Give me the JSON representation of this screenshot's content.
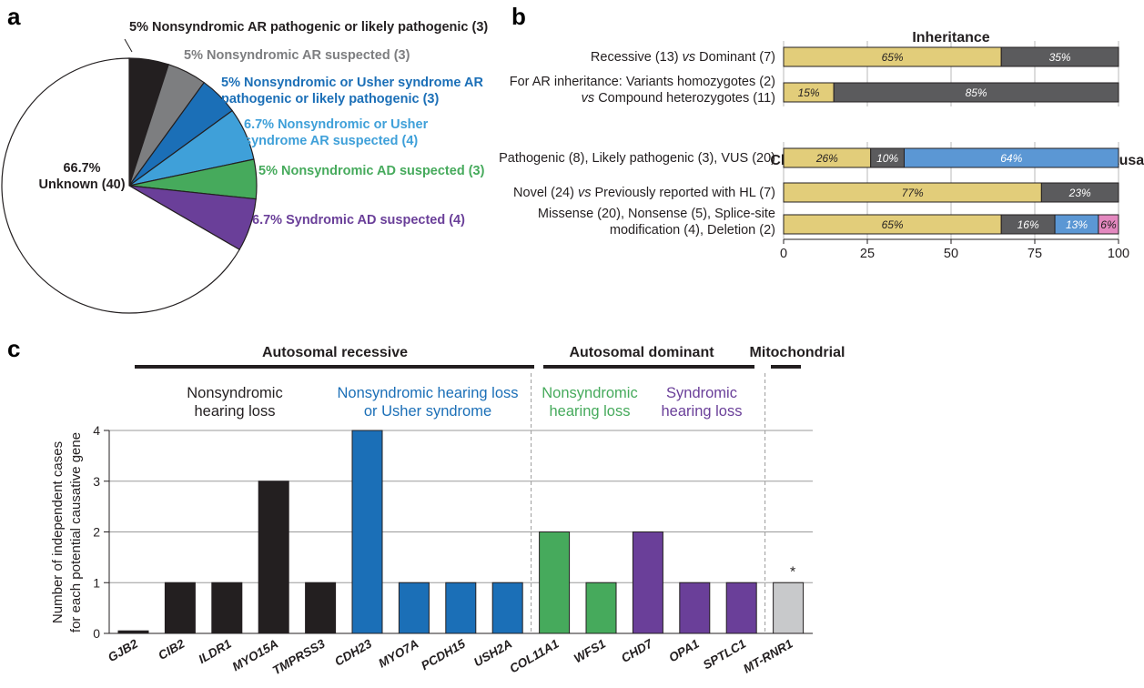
{
  "panel_labels": {
    "a": "a",
    "b": "b",
    "c": "c"
  },
  "colors": {
    "black": "#231f20",
    "gray": "#7d7e80",
    "blue": "#1b6fb7",
    "light_blue": "#3fa0d9",
    "green": "#46aa5c",
    "purple": "#6a3f99",
    "white": "#ffffff",
    "yellow": "#e2cd7a",
    "dark_gray": "#5b5b5d",
    "mid_blue": "#5b97d4",
    "pink": "#e388bf",
    "light_gray": "#c8c9cb"
  },
  "chart_data": [
    {
      "type": "pie",
      "panel": "a",
      "slices": [
        {
          "label": "5% Nonsyndromic AR pathogenic or likely pathogenic (3)",
          "value": 5,
          "color": "#231f20"
        },
        {
          "label": "5% Nonsyndromic AR suspected (3)",
          "value": 5,
          "color": "#7d7e80"
        },
        {
          "label": "5% Nonsyndromic or Usher syndrome AR pathogenic or likely pathogenic (3)",
          "value": 5,
          "color": "#1b6fb7"
        },
        {
          "label": "6.7% Nonsyndromic or Usher syndrome AR suspected (4)",
          "value": 6.7,
          "color": "#3fa0d9"
        },
        {
          "label": "5% Nonsyndromic AD suspected (3)",
          "value": 5,
          "color": "#46aa5c"
        },
        {
          "label": "6.7% Syndromic AD suspected (4)",
          "value": 6.7,
          "color": "#6a3f99"
        },
        {
          "label": "66.7% Unknown (40)",
          "value": 66.7,
          "color": "#ffffff"
        }
      ],
      "label_lines": {
        "s0": [
          "5% Nonsyndromic AR pathogenic or likely pathogenic (3)"
        ],
        "s1": [
          "5% Nonsyndromic AR suspected (3)"
        ],
        "s2": [
          "5% Nonsyndromic or Usher syndrome AR",
          "pathogenic or likely pathogenic (3)"
        ],
        "s3": [
          "6.7% Nonsyndromic or Usher",
          "syndrome AR suspected (4)"
        ],
        "s4": [
          "5% Nonsyndromic AD suspected (3)"
        ],
        "s5": [
          "6.7% Syndromic AD suspected (4)"
        ],
        "s6": [
          "66.7%",
          "Unknown (40)"
        ]
      }
    },
    {
      "type": "bar",
      "subtype": "stacked-horizontal",
      "panel": "b",
      "titles": [
        "Inheritance",
        "Characteristics of the Variants Suspected to be Causal"
      ],
      "xlim": [
        0,
        100
      ],
      "xticks": [
        0,
        25,
        50,
        75,
        100
      ],
      "grid": true,
      "rows": [
        {
          "label_parts": [
            [
              "Recessive (13) ",
              ""
            ],
            [
              "vs",
              "italic"
            ],
            [
              " Dominant (7)",
              ""
            ]
          ],
          "segments": [
            {
              "value": 65,
              "label": "65%",
              "color": "#e2cd7a"
            },
            {
              "value": 35,
              "label": "35%",
              "color": "#5b5b5d"
            }
          ]
        },
        {
          "label_lines": [
            [
              [
                "For AR inheritance: Variants homozygotes (2)",
                ""
              ]
            ],
            [
              [
                "vs",
                "italic"
              ],
              [
                " Compound heterozygotes (11)",
                ""
              ]
            ]
          ],
          "segments": [
            {
              "value": 15,
              "label": "15%",
              "color": "#e2cd7a"
            },
            {
              "value": 85,
              "label": "85%",
              "color": "#5b5b5d"
            }
          ]
        },
        {
          "label_parts": [
            [
              "Pathogenic (8), Likely pathogenic (3), VUS (20)",
              ""
            ]
          ],
          "segments": [
            {
              "value": 26,
              "label": "26%",
              "color": "#e2cd7a"
            },
            {
              "value": 10,
              "label": "10%",
              "color": "#5b5b5d"
            },
            {
              "value": 64,
              "label": "64%",
              "color": "#5b97d4"
            }
          ]
        },
        {
          "label_parts": [
            [
              "Novel (24) ",
              ""
            ],
            [
              "vs",
              "italic"
            ],
            [
              " Previously reported with HL (7)",
              ""
            ]
          ],
          "segments": [
            {
              "value": 77,
              "label": "77%",
              "color": "#e2cd7a"
            },
            {
              "value": 23,
              "label": "23%",
              "color": "#5b5b5d"
            }
          ]
        },
        {
          "label_lines": [
            [
              [
                "Missense (20), Nonsense (5), Splice-site",
                ""
              ]
            ],
            [
              [
                "modification (4), Deletion (2)",
                ""
              ]
            ]
          ],
          "segments": [
            {
              "value": 65,
              "label": "65%",
              "color": "#e2cd7a"
            },
            {
              "value": 16,
              "label": "16%",
              "color": "#5b5b5d"
            },
            {
              "value": 13,
              "label": "13%",
              "color": "#5b97d4"
            },
            {
              "value": 6,
              "label": "6%",
              "color": "#e388bf"
            }
          ]
        }
      ]
    },
    {
      "type": "bar",
      "panel": "c",
      "ylabel_lines": [
        "Number of independent cases",
        "for each potential causative gene"
      ],
      "ylim": [
        0,
        4
      ],
      "yticks": [
        0,
        1,
        2,
        3,
        4
      ],
      "grid": true,
      "categories": [
        "GJB2",
        "CIB2",
        "ILDR1",
        "MYO15A",
        "TMPRSS3",
        "CDH23",
        "MYO7A",
        "PCDH15",
        "USH2A",
        "COL11A1",
        "WFS1",
        "CHD7",
        "OPA1",
        "SPTLC1",
        "MT-RNR1"
      ],
      "values": [
        0.05,
        1,
        1,
        3,
        1,
        4,
        1,
        1,
        1,
        2,
        1,
        2,
        1,
        1,
        1
      ],
      "colors": [
        "#231f20",
        "#231f20",
        "#231f20",
        "#231f20",
        "#231f20",
        "#1b6fb7",
        "#1b6fb7",
        "#1b6fb7",
        "#1b6fb7",
        "#46aa5c",
        "#46aa5c",
        "#6a3f99",
        "#6a3f99",
        "#6a3f99",
        "#c8c9cb"
      ],
      "annotations": [
        {
          "category": "MT-RNR1",
          "text": "*"
        }
      ],
      "groups": [
        {
          "label": "Autosomal recessive",
          "color": "#231f20"
        },
        {
          "label": "Autosomal dominant",
          "color": "#231f20"
        },
        {
          "label": "Mitochondrial",
          "color": "#231f20"
        }
      ],
      "subgroups": [
        {
          "lines": [
            "Nonsyndromic",
            "hearing loss"
          ],
          "color": "#231f20"
        },
        {
          "lines": [
            "Nonsyndromic hearing loss",
            "or Usher syndrome"
          ],
          "color": "#1b6fb7"
        },
        {
          "lines": [
            "Nonsyndromic",
            "hearing loss"
          ],
          "color": "#46aa5c"
        },
        {
          "lines": [
            "Syndromic",
            "hearing loss"
          ],
          "color": "#6a3f99"
        }
      ]
    }
  ]
}
